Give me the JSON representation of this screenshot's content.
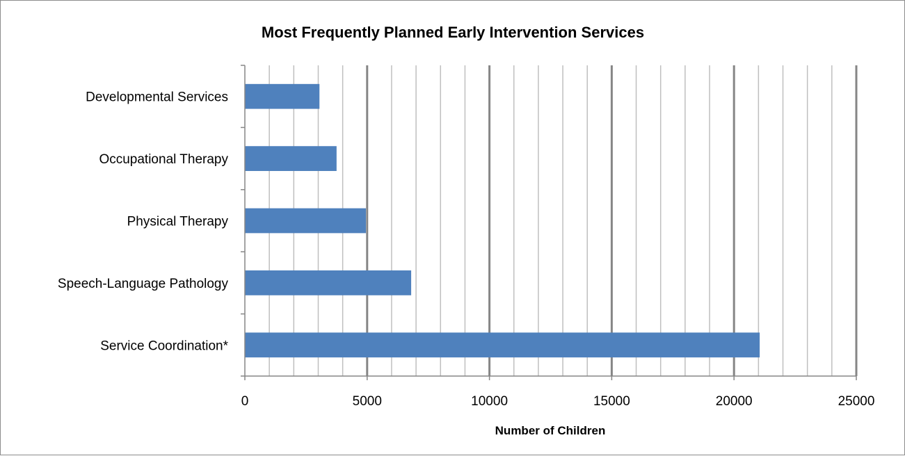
{
  "chart_data": {
    "type": "bar",
    "orientation": "horizontal",
    "title": "Most Frequently Planned Early Intervention Services",
    "xlabel": "Number of Children",
    "ylabel": "",
    "categories": [
      "Developmental Services",
      "Occupational Therapy",
      "Physical Therapy",
      "Speech-Language Pathology",
      "Service Coordination*"
    ],
    "values": [
      3050,
      3750,
      4950,
      6800,
      21050
    ],
    "xlim": [
      0,
      25000
    ],
    "major_ticks": [
      0,
      5000,
      10000,
      15000,
      20000,
      25000
    ],
    "tick_labels": [
      "0",
      "5000",
      "10000",
      "15000",
      "20000",
      "25000"
    ],
    "minor_step": 1000,
    "grid": true,
    "legend": "none",
    "colors": {
      "bar": "#4f81bd",
      "major_grid": "#868686",
      "minor_grid": "#bfbfbf",
      "axis": "#868686",
      "border": "#8c8c8c"
    }
  }
}
